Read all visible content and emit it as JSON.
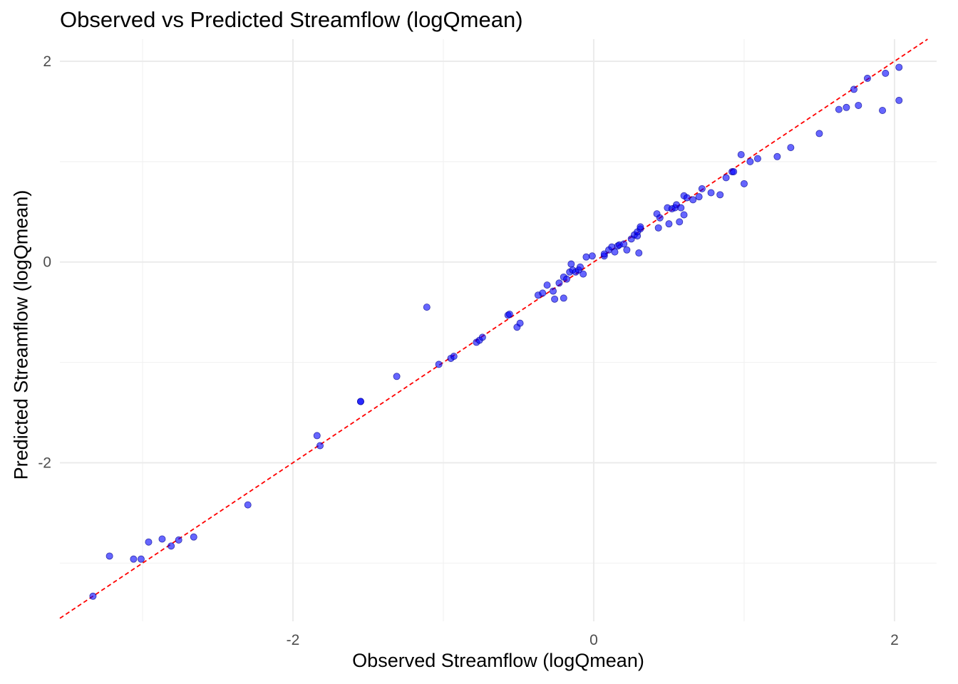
{
  "chart_data": {
    "type": "scatter",
    "title": "Observed vs Predicted Streamflow (logQmean)",
    "xlabel": "Observed Streamflow (logQmean)",
    "ylabel": "Predicted Streamflow (logQmean)",
    "xlim": [
      -3.55,
      2.28
    ],
    "ylim": [
      -3.58,
      2.22
    ],
    "xticks": [
      -2,
      0,
      2
    ],
    "yticks": [
      -2,
      0,
      2
    ],
    "grid": true,
    "point_color": "#0000ff",
    "reference_line": {
      "slope": 1,
      "intercept": 0,
      "color": "#ff0000",
      "style": "dashed"
    },
    "series": [
      {
        "x": [
          -3.33,
          -3.22,
          -3.06,
          -3.01,
          -2.96,
          -2.87,
          -2.81,
          -2.76,
          -2.66,
          -2.3,
          -1.84,
          -1.82,
          -1.55,
          -1.55,
          -1.31,
          -1.11,
          -1.03,
          -0.95,
          -0.93,
          -0.78,
          -0.76,
          -0.74,
          -0.57,
          -0.56,
          -0.51,
          -0.49,
          -0.37,
          -0.34,
          -0.31,
          -0.27,
          -0.26,
          -0.23,
          -0.2,
          -0.2,
          -0.18,
          -0.16,
          -0.15,
          -0.14,
          -0.12,
          -0.1,
          -0.09,
          -0.07,
          -0.05,
          -0.01,
          0.07,
          0.07,
          0.1,
          0.12,
          0.14,
          0.16,
          0.17,
          0.2,
          0.22,
          0.25,
          0.27,
          0.29,
          0.29,
          0.3,
          0.31,
          0.31,
          0.42,
          0.43,
          0.44,
          0.49,
          0.5,
          0.52,
          0.54,
          0.55,
          0.57,
          0.58,
          0.6,
          0.6,
          0.62,
          0.66,
          0.7,
          0.72,
          0.78,
          0.84,
          0.88,
          0.92,
          0.93,
          0.98,
          1.0,
          1.04,
          1.09,
          1.22,
          1.31,
          1.5,
          1.63,
          1.68,
          1.73,
          1.76,
          1.82,
          1.92,
          1.94,
          2.03
        ],
        "y": [
          -3.33,
          -2.93,
          -2.96,
          -2.96,
          -2.79,
          -2.76,
          -2.83,
          -2.77,
          -2.74,
          -2.42,
          -1.73,
          -1.83,
          -1.39,
          -1.39,
          -1.14,
          -0.45,
          -1.02,
          -0.96,
          -0.94,
          -0.8,
          -0.78,
          -0.75,
          -0.53,
          -0.52,
          -0.65,
          -0.61,
          -0.33,
          -0.31,
          -0.23,
          -0.29,
          -0.37,
          -0.21,
          -0.36,
          -0.15,
          -0.17,
          -0.1,
          -0.02,
          -0.08,
          -0.1,
          -0.08,
          -0.05,
          -0.12,
          0.05,
          0.06,
          0.06,
          0.08,
          0.12,
          0.15,
          0.1,
          0.16,
          0.17,
          0.18,
          0.12,
          0.23,
          0.27,
          0.26,
          0.3,
          0.09,
          0.33,
          0.35,
          0.48,
          0.34,
          0.44,
          0.54,
          0.38,
          0.53,
          0.54,
          0.57,
          0.4,
          0.54,
          0.47,
          0.66,
          0.64,
          0.62,
          0.65,
          0.73,
          0.69,
          0.67,
          0.84,
          0.9,
          0.9,
          1.07,
          0.78,
          1.0,
          1.03,
          1.05,
          1.14,
          1.28,
          1.52,
          1.54,
          1.72,
          1.56,
          1.83,
          1.51,
          1.88,
          1.94
        ],
        "extra": {
          "x": [
            2.03
          ],
          "y": [
            1.61
          ]
        }
      }
    ]
  }
}
